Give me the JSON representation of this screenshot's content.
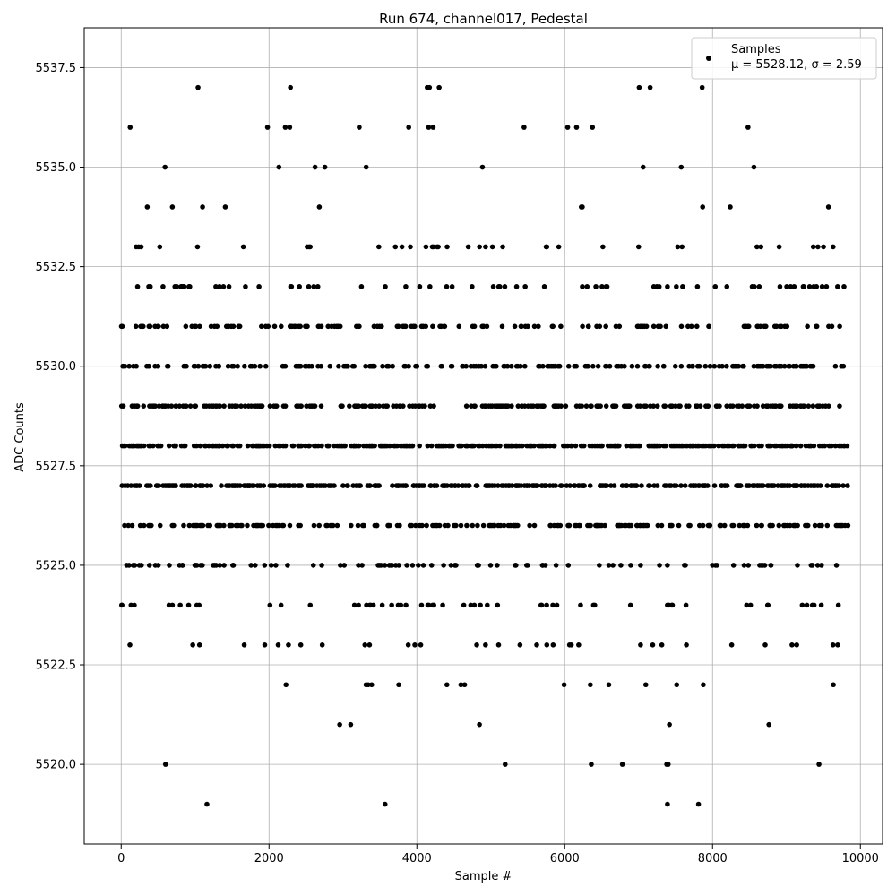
{
  "chart_data": {
    "type": "scatter",
    "title": "Run 674, channel017, Pedestal",
    "xlabel": "Sample #",
    "ylabel": "ADC Counts",
    "xlim": [
      -500,
      10300
    ],
    "ylim": [
      5518,
      5538.5
    ],
    "xticks": [
      0,
      2000,
      4000,
      6000,
      8000,
      10000
    ],
    "xtick_labels": [
      "0",
      "2000",
      "4000",
      "6000",
      "8000",
      "10000"
    ],
    "yticks": [
      5520.0,
      5522.5,
      5525.0,
      5527.5,
      5530.0,
      5532.5,
      5535.0,
      5537.5
    ],
    "ytick_labels": [
      "5520.0",
      "5522.5",
      "5525.0",
      "5527.5",
      "5530.0",
      "5532.5",
      "5535.0",
      "5537.5"
    ],
    "grid": true,
    "legend": {
      "placement": "top-right",
      "series_label": "Samples",
      "stats_label": "μ = 5528.12, σ = 2.59"
    },
    "series": [
      {
        "name": "Samples",
        "color": "#000000",
        "x_range": [
          0,
          9830
        ],
        "level_densities": [
          {
            "y": 5519,
            "density": 0.001
          },
          {
            "y": 5520,
            "density": 0.001
          },
          {
            "y": 5521,
            "density": 0.004
          },
          {
            "y": 5522,
            "density": 0.012
          },
          {
            "y": 5523,
            "density": 0.03
          },
          {
            "y": 5524,
            "density": 0.06
          },
          {
            "y": 5525,
            "density": 0.11
          },
          {
            "y": 5526,
            "density": 0.2
          },
          {
            "y": 5527,
            "density": 0.3
          },
          {
            "y": 5528,
            "density": 0.3
          },
          {
            "y": 5529,
            "density": 0.25
          },
          {
            "y": 5530,
            "density": 0.18
          },
          {
            "y": 5531,
            "density": 0.14
          },
          {
            "y": 5532,
            "density": 0.07
          },
          {
            "y": 5533,
            "density": 0.035
          },
          {
            "y": 5534,
            "density": 0.012
          },
          {
            "y": 5535,
            "density": 0.008
          },
          {
            "y": 5536,
            "density": 0.002
          },
          {
            "y": 5537,
            "density": 0.001
          }
        ],
        "points": [
          [
            1040,
            5537
          ],
          [
            2290,
            5537
          ],
          [
            4140,
            5537
          ],
          [
            4170,
            5537
          ],
          [
            1980,
            5536
          ],
          [
            2220,
            5536
          ],
          [
            2280,
            5536
          ],
          [
            3220,
            5536
          ],
          [
            3890,
            5536
          ],
          [
            4160,
            5536
          ],
          [
            4220,
            5536
          ],
          [
            6040,
            5536
          ],
          [
            6160,
            5536
          ],
          [
            8480,
            5536
          ],
          [
            600,
            5520
          ],
          [
            6360,
            5520
          ],
          [
            6780,
            5520
          ],
          [
            7380,
            5520
          ],
          [
            7400,
            5520
          ],
          [
            9440,
            5520
          ],
          [
            1160,
            5519
          ],
          [
            3570,
            5519
          ],
          [
            7390,
            5519
          ],
          [
            7810,
            5519
          ]
        ]
      }
    ]
  }
}
